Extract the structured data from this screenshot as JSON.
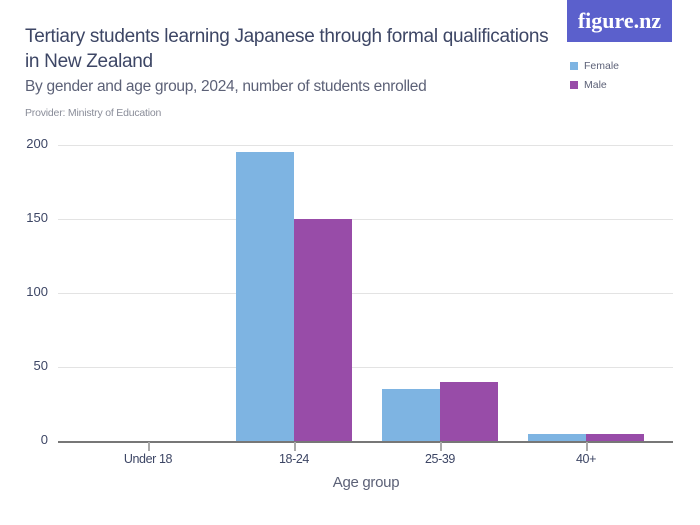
{
  "header": {
    "title": "Tertiary students learning Japanese through formal qualifications in New Zealand",
    "subtitle": "By gender and age group, 2024, number of students enrolled",
    "provider": "Provider: Ministry of Education",
    "logo": "figure.nz"
  },
  "legend": [
    {
      "label": "Female",
      "color": "#7eb4e2"
    },
    {
      "label": "Male",
      "color": "#984ca8"
    }
  ],
  "y_ticks": [
    "0",
    "50",
    "100",
    "150",
    "200"
  ],
  "x_labels": [
    "Under 18",
    "18-24",
    "25-39",
    "40+"
  ],
  "x_title": "Age group",
  "chart_data": {
    "type": "bar",
    "title": "Tertiary students learning Japanese through formal qualifications in New Zealand",
    "subtitle": "By gender and age group, 2024, number of students enrolled",
    "xlabel": "Age group",
    "ylabel": "",
    "categories": [
      "Under 18",
      "18-24",
      "25-39",
      "40+"
    ],
    "series": [
      {
        "name": "Female",
        "color": "#7eb4e2",
        "values": [
          0,
          195,
          35,
          5
        ]
      },
      {
        "name": "Male",
        "color": "#984ca8",
        "values": [
          0,
          150,
          40,
          5
        ]
      }
    ],
    "ylim": [
      0,
      200
    ],
    "yticks": [
      0,
      50,
      100,
      150,
      200
    ],
    "grid": true,
    "legend_position": "top-right"
  }
}
